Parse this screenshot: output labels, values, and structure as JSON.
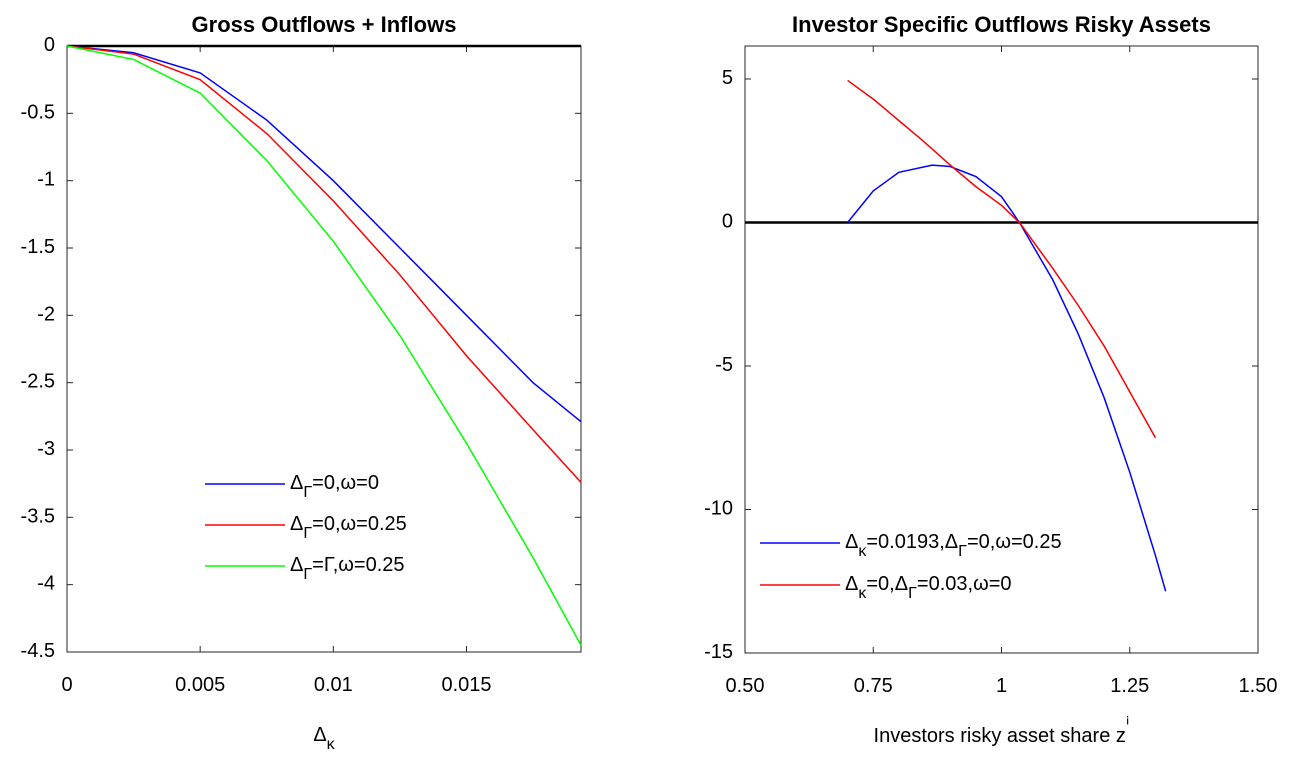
{
  "chart_data": [
    {
      "type": "line",
      "title": "Gross Outflows + Inflows",
      "x_label": "Δκ",
      "xlim": [
        0,
        0.0193
      ],
      "xticks": [
        0,
        0.005,
        0.01,
        0.015
      ],
      "ylim": [
        -4.5,
        0
      ],
      "yticks": [
        -4.5,
        -4,
        -3.5,
        -3,
        -2.5,
        -2,
        -1.5,
        -1,
        -0.5,
        0
      ],
      "zero_line": true,
      "legend": "lower center",
      "series": [
        {
          "name": "ΔΓ=0,ω=0",
          "color": "#0000ff",
          "x": [
            0,
            0.0025,
            0.005,
            0.0075,
            0.01,
            0.0125,
            0.015,
            0.0175,
            0.0193
          ],
          "values": [
            0,
            -0.05,
            -0.2,
            -0.55,
            -1.0,
            -1.5,
            -2.0,
            -2.5,
            -2.79
          ]
        },
        {
          "name": "ΔΓ=0,ω=0.25",
          "color": "#ff0000",
          "x": [
            0,
            0.0025,
            0.005,
            0.0075,
            0.01,
            0.0125,
            0.015,
            0.0175,
            0.0193
          ],
          "values": [
            0,
            -0.06,
            -0.25,
            -0.65,
            -1.15,
            -1.7,
            -2.3,
            -2.85,
            -3.24
          ]
        },
        {
          "name": "ΔΓ=Γ,ω=0.25",
          "color": "#00ff00",
          "x": [
            0,
            0.0025,
            0.005,
            0.0075,
            0.01,
            0.0125,
            0.015,
            0.0175,
            0.0193
          ],
          "values": [
            0,
            -0.1,
            -0.35,
            -0.85,
            -1.45,
            -2.15,
            -2.95,
            -3.8,
            -4.45
          ]
        }
      ]
    },
    {
      "type": "line",
      "title": "Investor Specific Outflows Risky Assets",
      "x_label": "Investors risky asset share zⁱ",
      "xlim": [
        0.5,
        1.5
      ],
      "xticks": [
        {
          "value": 0.5,
          "label": "0.50"
        },
        0.75,
        1,
        1.25,
        {
          "value": 1.5,
          "label": "1.50"
        }
      ],
      "ylim": [
        -15,
        6.15
      ],
      "yticks": [
        -15,
        -10,
        -5,
        0,
        5
      ],
      "zero_line": true,
      "legend": "lower left",
      "series": [
        {
          "name": "Δκ=0.0193,ΔΓ=0,ω=0.25",
          "color": "#0000ff",
          "x": [
            0.7,
            0.75,
            0.8,
            0.865,
            0.9,
            0.95,
            1.0,
            1.035,
            1.1,
            1.15,
            1.2,
            1.25,
            1.3,
            1.32
          ],
          "values": [
            0,
            1.1,
            1.75,
            2.0,
            1.95,
            1.6,
            0.9,
            0,
            -2.0,
            -3.9,
            -6.1,
            -8.7,
            -11.6,
            -12.85
          ]
        },
        {
          "name": "Δκ=0,ΔΓ=0.03,ω=0",
          "color": "#ff0000",
          "x": [
            0.7,
            0.75,
            0.8,
            0.85,
            0.9,
            0.95,
            1.0,
            1.035,
            1.1,
            1.15,
            1.2,
            1.25,
            1.3
          ],
          "values": [
            4.95,
            4.3,
            3.55,
            2.8,
            2.0,
            1.25,
            0.6,
            0,
            -1.6,
            -2.9,
            -4.3,
            -5.9,
            -7.5
          ]
        }
      ]
    }
  ]
}
